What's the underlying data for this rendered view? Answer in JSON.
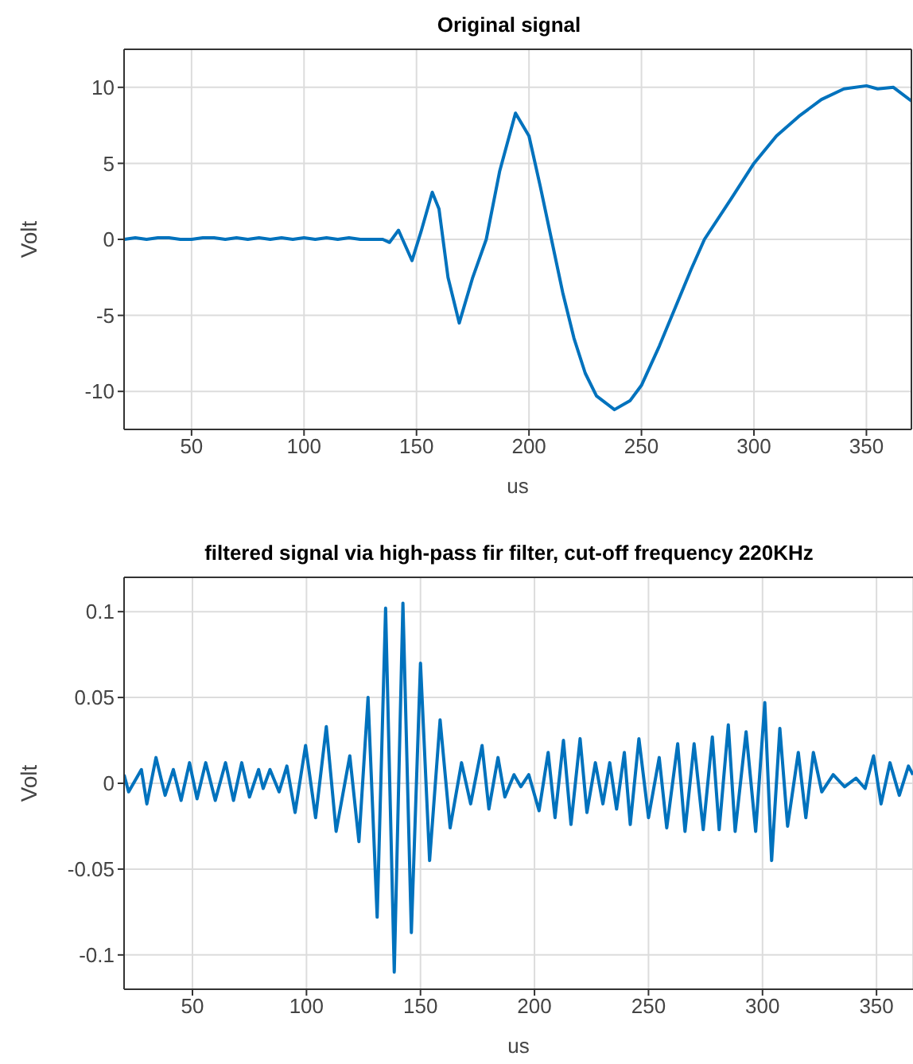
{
  "chart_data": [
    {
      "type": "line",
      "title": "Original signal",
      "xlabel": "us",
      "ylabel": "Volt",
      "xlim": [
        20,
        370
      ],
      "xticks": [
        50,
        100,
        150,
        200,
        250,
        300,
        350
      ],
      "ylim": [
        -12.5,
        12.5
      ],
      "yticks": [
        -10,
        -5,
        0,
        5,
        10
      ],
      "grid": true,
      "line_style": "solid",
      "marker": "none",
      "series": [
        {
          "color": "#0072bd",
          "x": [
            20,
            25,
            30,
            35,
            40,
            45,
            50,
            55,
            60,
            65,
            70,
            75,
            80,
            85,
            90,
            95,
            100,
            105,
            110,
            115,
            120,
            125,
            130,
            135,
            138,
            142,
            148,
            152,
            157,
            160,
            164,
            169,
            175,
            181,
            187,
            194,
            200,
            205,
            210,
            215,
            220,
            225,
            230,
            238,
            245,
            250,
            258,
            265,
            272,
            278,
            290,
            300,
            310,
            320,
            330,
            340,
            350,
            355,
            362,
            370
          ],
          "values": [
            0,
            0.1,
            0,
            0.1,
            0.1,
            0,
            0,
            0.1,
            0.1,
            0,
            0.1,
            0,
            0.1,
            0,
            0.1,
            0,
            0.1,
            0,
            0.1,
            0,
            0.1,
            0,
            0,
            0,
            -0.2,
            0.6,
            -1.4,
            0.5,
            3.1,
            2,
            -2.5,
            -5.5,
            -2.5,
            0,
            4.5,
            8.3,
            6.8,
            3.5,
            0,
            -3.5,
            -6.5,
            -8.8,
            -10.3,
            -11.2,
            -10.6,
            -9.6,
            -7,
            -4.5,
            -2,
            0,
            2.7,
            5,
            6.8,
            8.1,
            9.2,
            9.9,
            10.1,
            9.9,
            10,
            9.1
          ]
        }
      ]
    },
    {
      "type": "line",
      "title": "filtered signal via high-pass fir filter, cut-off frequency 220KHz",
      "xlabel": "us",
      "ylabel": "Volt",
      "xlim": [
        20,
        366
      ],
      "xticks": [
        50,
        100,
        150,
        200,
        250,
        300,
        350
      ],
      "ylim": [
        -0.12,
        0.12
      ],
      "yticks": [
        -0.1,
        -0.05,
        0,
        0.05,
        0.1
      ],
      "grid": true,
      "line_style": "solid",
      "marker": "none",
      "series": [
        {
          "color": "#0072bd",
          "x": [
            20,
            22,
            27.6,
            30,
            34,
            38,
            41.6,
            45,
            48.7,
            52,
            55.8,
            60,
            64.5,
            68,
            71.6,
            75,
            79,
            81,
            84,
            88,
            91.4,
            95,
            99.6,
            104,
            108.7,
            113,
            119,
            123,
            127,
            131,
            134.7,
            138.5,
            142.3,
            146,
            150,
            154,
            158.6,
            163,
            168,
            172,
            177,
            180,
            184,
            187,
            191,
            194,
            197.5,
            202,
            206,
            209,
            212.7,
            216,
            220,
            223,
            226.7,
            230,
            233,
            236,
            239.4,
            242,
            245.8,
            250,
            254.7,
            258,
            262.8,
            266,
            270,
            274,
            278,
            281,
            285,
            288,
            292.8,
            297,
            301,
            304,
            307.6,
            311,
            315.7,
            319,
            322.3,
            326,
            331,
            336,
            341,
            345,
            348.7,
            352,
            355.9,
            360,
            364,
            366
          ],
          "values": [
            0.005,
            -0.005,
            0.008,
            -0.012,
            0.015,
            -0.007,
            0.008,
            -0.01,
            0.012,
            -0.009,
            0.012,
            -0.01,
            0.012,
            -0.01,
            0.012,
            -0.008,
            0.008,
            -0.003,
            0.008,
            -0.005,
            0.01,
            -0.017,
            0.022,
            -0.02,
            0.033,
            -0.028,
            0.016,
            -0.034,
            0.05,
            -0.078,
            0.102,
            -0.11,
            0.105,
            -0.087,
            0.07,
            -0.045,
            0.037,
            -0.026,
            0.012,
            -0.012,
            0.022,
            -0.015,
            0.015,
            -0.008,
            0.005,
            -0.002,
            0.005,
            -0.016,
            0.018,
            -0.02,
            0.025,
            -0.024,
            0.026,
            -0.017,
            0.012,
            -0.012,
            0.012,
            -0.015,
            0.018,
            -0.024,
            0.026,
            -0.02,
            0.015,
            -0.026,
            0.023,
            -0.028,
            0.023,
            -0.027,
            0.027,
            -0.027,
            0.034,
            -0.028,
            0.03,
            -0.028,
            0.047,
            -0.045,
            0.032,
            -0.025,
            0.018,
            -0.02,
            0.018,
            -0.005,
            0.005,
            -0.002,
            0.003,
            -0.003,
            0.016,
            -0.012,
            0.012,
            -0.007,
            0.01,
            0.005
          ]
        }
      ]
    }
  ]
}
